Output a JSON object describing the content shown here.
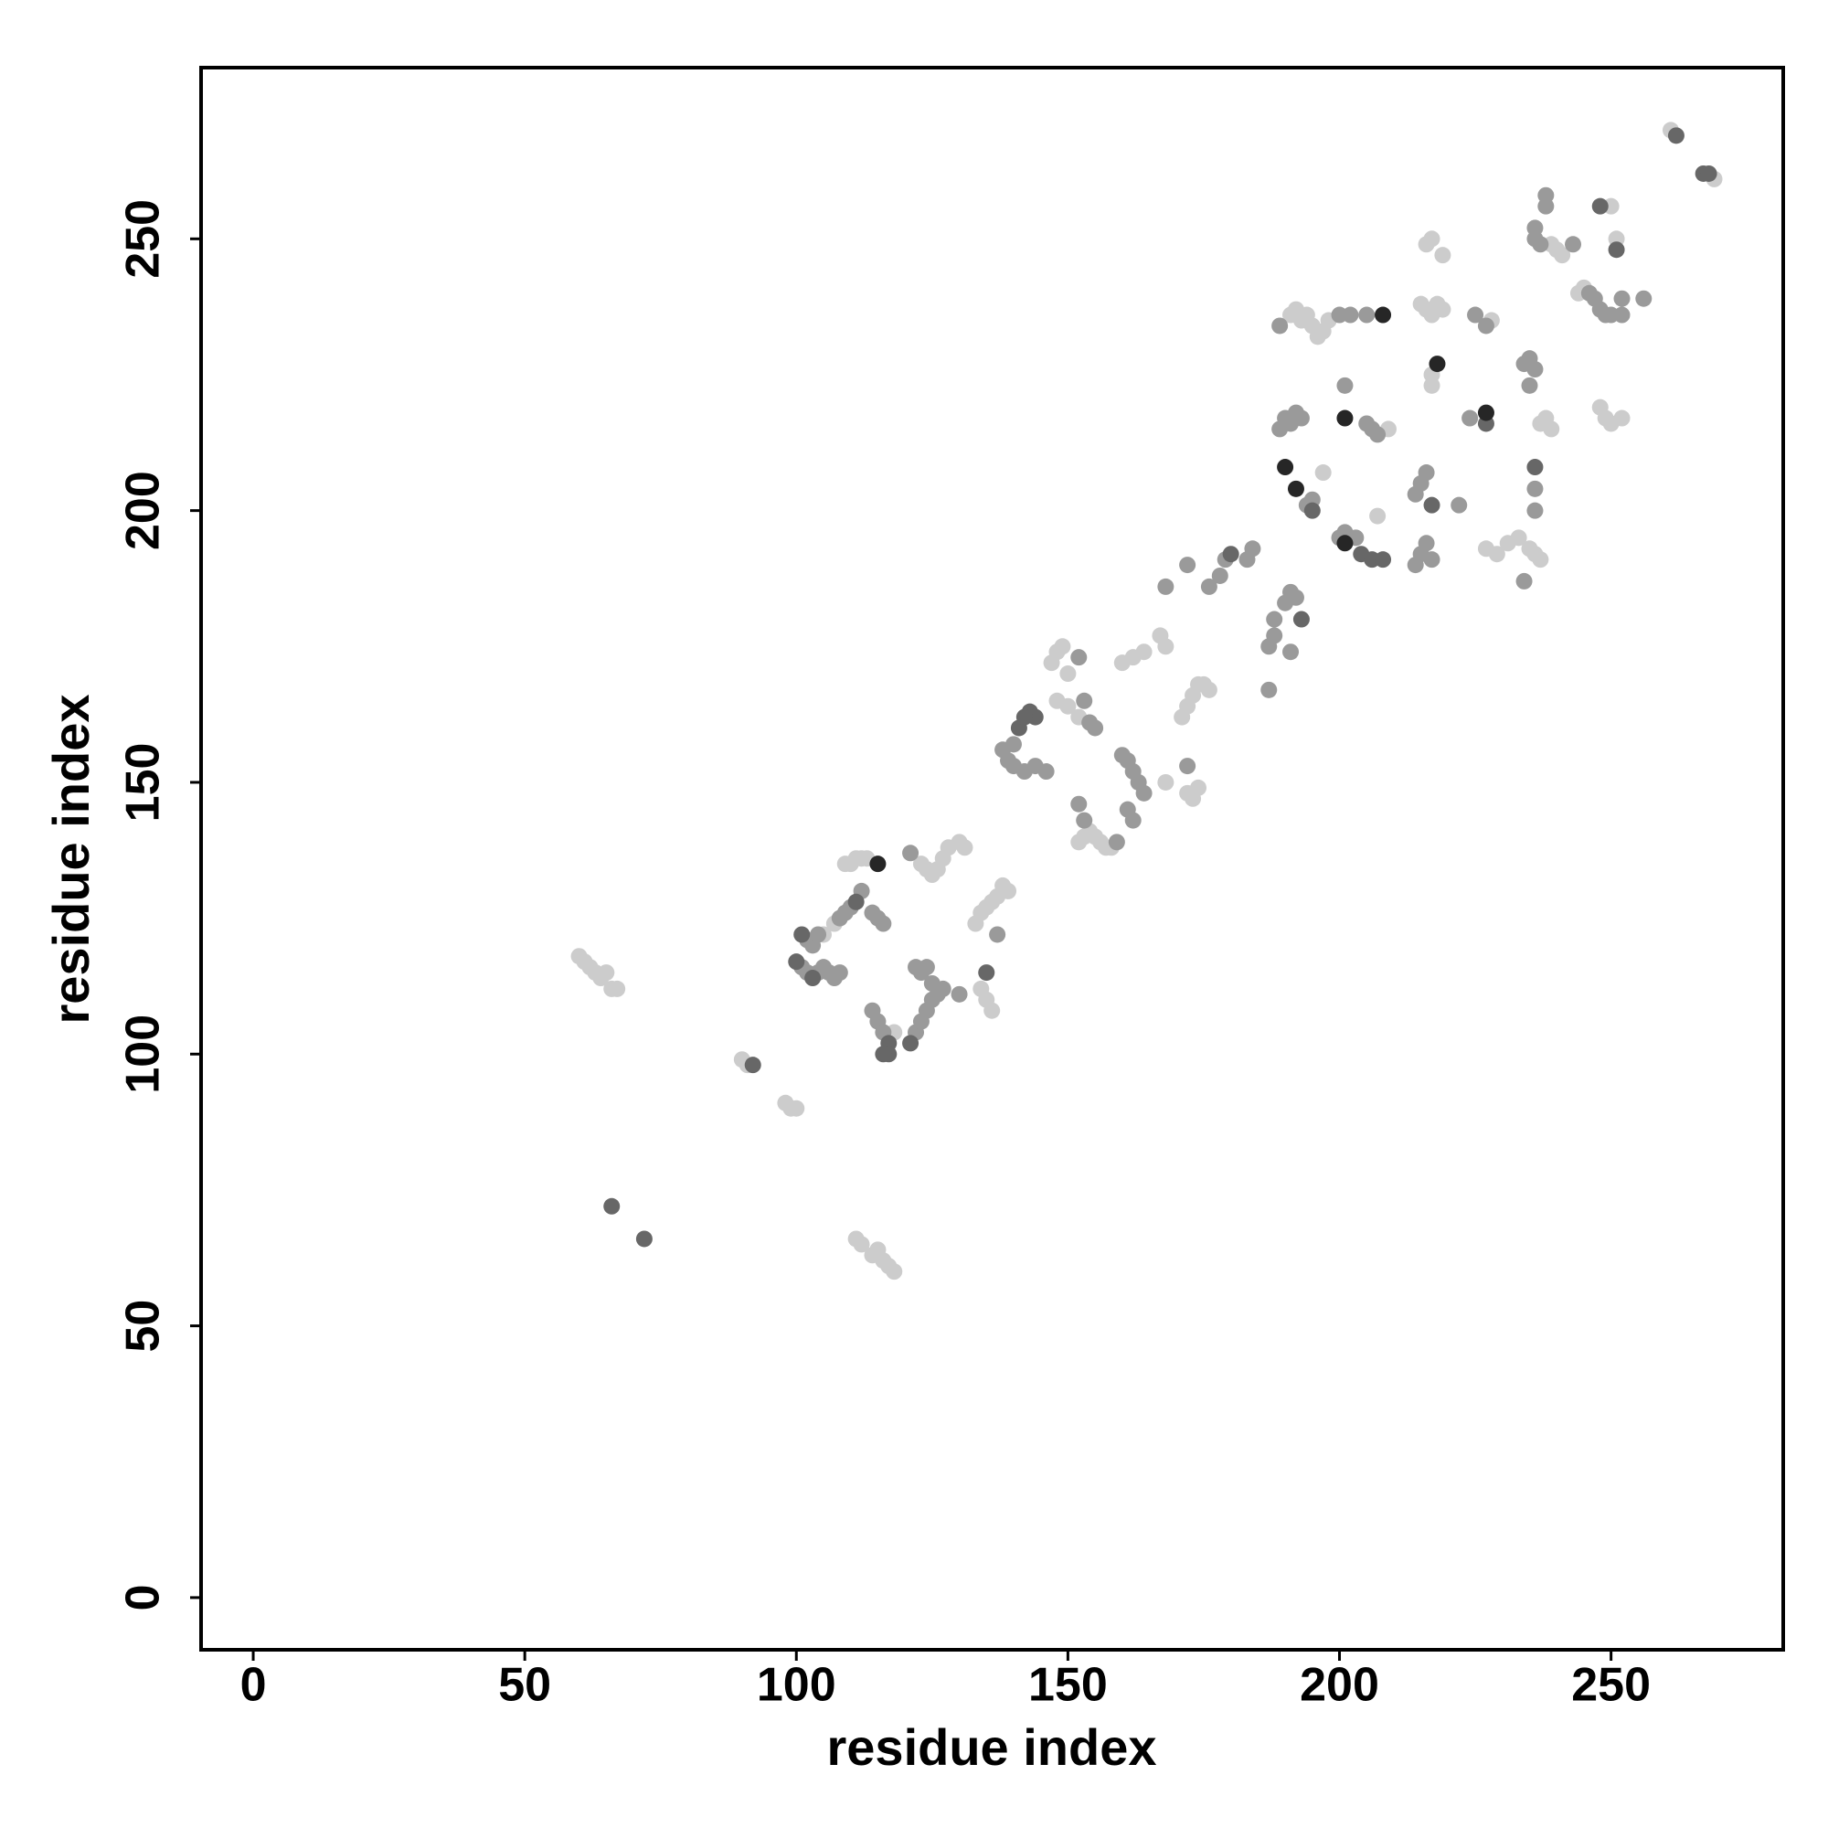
{
  "chart_data": {
    "type": "scatter",
    "xlabel": "residue index",
    "ylabel": "residue index",
    "xlim": [
      -9.6,
      281.7
    ],
    "ylim": [
      -9.6,
      281.5
    ],
    "xticks": [
      0,
      50,
      100,
      150,
      200,
      250
    ],
    "yticks": [
      0,
      50,
      100,
      150,
      200,
      250
    ],
    "series": [
      {
        "color": "#cccccc",
        "x": [
          60,
          61,
          62,
          63,
          64,
          65,
          66,
          67,
          90,
          91,
          98,
          99,
          100,
          111,
          112,
          114,
          115,
          116,
          117,
          118,
          109,
          110,
          111,
          112,
          113,
          105,
          107,
          118,
          123,
          124,
          125,
          126,
          127,
          128,
          130,
          131,
          134,
          135,
          136,
          133,
          134,
          135,
          136,
          137,
          138,
          139,
          147,
          148,
          149,
          150,
          148,
          150,
          152,
          152,
          153,
          154,
          155,
          156,
          157,
          158,
          160,
          162,
          164,
          167,
          168,
          168,
          171,
          172,
          173,
          174,
          175,
          176,
          197,
          191,
          192,
          193,
          194,
          195,
          196,
          197,
          198,
          207,
          209,
          215,
          216,
          217,
          218,
          219,
          216,
          217,
          219,
          217,
          217,
          228,
          227,
          229,
          231,
          233,
          235,
          236,
          237,
          237,
          238,
          239,
          239,
          240,
          241,
          248,
          249,
          250,
          252,
          250,
          251,
          269,
          261,
          244,
          245,
          172,
          173,
          174
        ],
        "y": [
          118,
          117,
          116,
          115,
          114,
          115,
          112,
          112,
          99,
          98,
          91,
          90,
          90,
          66,
          65,
          63,
          64,
          62,
          61,
          60,
          135,
          135,
          136,
          136,
          136,
          122,
          124,
          104,
          135,
          134,
          133,
          134,
          136,
          138,
          139,
          138,
          112,
          110,
          108,
          124,
          126,
          127,
          128,
          129,
          131,
          130,
          172,
          174,
          175,
          170,
          165,
          164,
          162,
          139,
          140,
          141,
          140,
          139,
          138,
          138,
          172,
          173,
          174,
          177,
          175,
          150,
          162,
          164,
          166,
          168,
          168,
          167,
          207,
          236,
          237,
          235,
          236,
          234,
          232,
          233,
          235,
          199,
          215,
          238,
          237,
          236,
          238,
          237,
          249,
          250,
          247,
          225,
          223,
          235,
          193,
          192,
          194,
          195,
          193,
          192,
          191,
          216,
          217,
          215,
          249,
          248,
          247,
          219,
          217,
          216,
          217,
          256,
          250,
          261,
          270,
          240,
          241,
          148,
          147,
          149
        ]
      },
      {
        "color": "#9a9a9a",
        "x": [
          101,
          102,
          104,
          105,
          106,
          107,
          108,
          102,
          103,
          104,
          108,
          109,
          110,
          112,
          114,
          115,
          116,
          114,
          115,
          116,
          121,
          122,
          123,
          124,
          125,
          126,
          127,
          122,
          123,
          124,
          125,
          130,
          137,
          139,
          140,
          142,
          144,
          146,
          138,
          140,
          152,
          153,
          154,
          155,
          152,
          153,
          159,
          160,
          161,
          162,
          163,
          164,
          161,
          162,
          172,
          168,
          172,
          176,
          178,
          179,
          183,
          184,
          187,
          188,
          188,
          187,
          190,
          191,
          192,
          191,
          189,
          190,
          191,
          192,
          193,
          194,
          195,
          189,
          200,
          201,
          203,
          201,
          205,
          206,
          207,
          200,
          202,
          205,
          214,
          215,
          216,
          217,
          214,
          215,
          216,
          222,
          224,
          225,
          227,
          234,
          234,
          235,
          236,
          235,
          236,
          236,
          236,
          236,
          237,
          238,
          238,
          243,
          246,
          247,
          248,
          249,
          250,
          252,
          252,
          256
        ],
        "y": [
          116,
          115,
          115,
          116,
          115,
          114,
          115,
          121,
          120,
          122,
          125,
          126,
          127,
          130,
          126,
          125,
          124,
          108,
          106,
          104,
          137,
          104,
          106,
          108,
          110,
          111,
          112,
          116,
          115,
          116,
          113,
          111,
          122,
          154,
          153,
          152,
          153,
          152,
          156,
          157,
          173,
          165,
          161,
          160,
          146,
          143,
          139,
          155,
          154,
          152,
          150,
          148,
          145,
          143,
          153,
          186,
          190,
          186,
          188,
          191,
          191,
          193,
          175,
          177,
          180,
          167,
          183,
          185,
          184,
          174,
          215,
          217,
          216,
          218,
          217,
          201,
          202,
          234,
          195,
          196,
          195,
          223,
          216,
          215,
          214,
          236,
          236,
          236,
          190,
          192,
          194,
          191,
          203,
          205,
          207,
          201,
          217,
          236,
          234,
          187,
          227,
          228,
          226,
          223,
          204,
          200,
          250,
          252,
          249,
          256,
          258,
          249,
          240,
          239,
          237,
          236,
          236,
          236,
          239,
          239
        ]
      },
      {
        "color": "#676767",
        "x": [
          66,
          72,
          92,
          100,
          101,
          103,
          111,
          117,
          117,
          121,
          143,
          144,
          141,
          142,
          180,
          193,
          195,
          204,
          206,
          208,
          217,
          227,
          248,
          251,
          262,
          267,
          268,
          236,
          116,
          135
        ],
        "y": [
          72,
          66,
          98,
          117,
          122,
          114,
          128,
          102,
          100,
          102,
          163,
          162,
          160,
          162,
          192,
          180,
          200,
          192,
          191,
          191,
          201,
          216,
          256,
          248,
          269,
          262,
          262,
          208,
          100,
          115
        ]
      },
      {
        "color": "#262626",
        "x": [
          115,
          190,
          192,
          201,
          201,
          208,
          218,
          227
        ],
        "y": [
          135,
          208,
          204,
          194,
          217,
          236,
          227,
          218
        ]
      }
    ]
  }
}
